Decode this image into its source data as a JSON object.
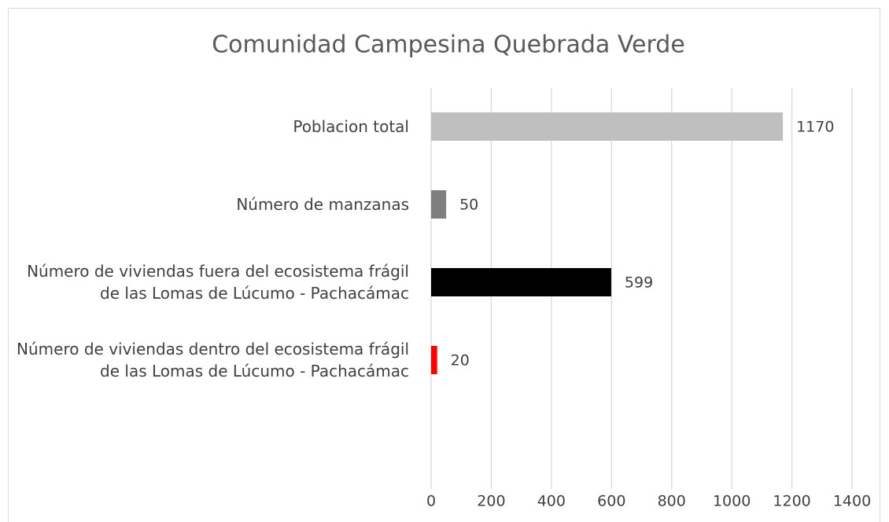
{
  "chart_data": {
    "type": "hbar",
    "title": "Comunidad Campesina Quebrada Verde",
    "categories": [
      "Poblacion total",
      "Número de manzanas",
      "Número de viviendas fuera del ecosistema frágil de las Lomas de Lúcumo - Pachacámac",
      "Número de viviendas dentro del ecosistema frágil de las Lomas de Lúcumo - Pachacámac"
    ],
    "values": [
      1170,
      50,
      599,
      20
    ],
    "colors": [
      "#bfbfbf",
      "#7f7f7f",
      "#000000",
      "#ff0000"
    ],
    "xlim": [
      0,
      1400
    ],
    "xticks": [
      0,
      200,
      400,
      600,
      800,
      1000,
      1200,
      1400
    ],
    "grid": true
  }
}
